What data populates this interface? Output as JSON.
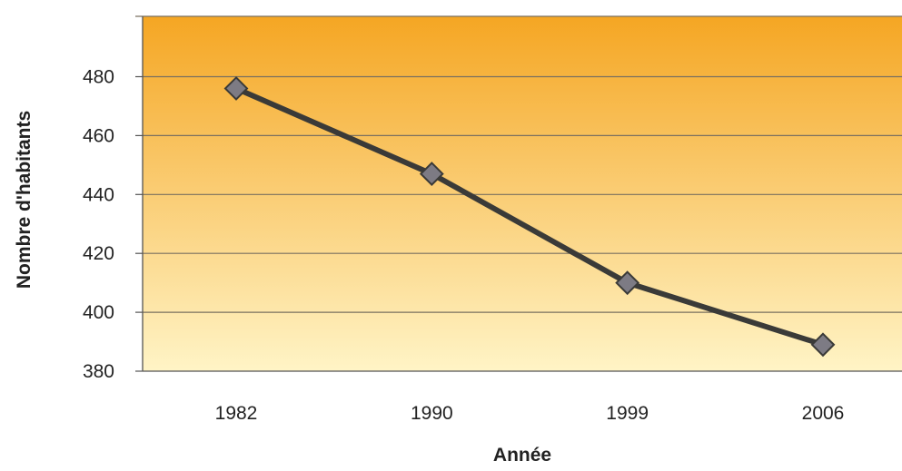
{
  "chart_data": {
    "type": "line",
    "title": "",
    "xlabel": "Année",
    "ylabel": "Nombre d'habitants",
    "categories": [
      "1982",
      "1990",
      "1999",
      "2006"
    ],
    "series": [
      {
        "values": [
          476,
          447,
          410,
          389
        ]
      }
    ],
    "ylim": [
      380,
      500
    ],
    "yticks": [
      380,
      400,
      420,
      440,
      460,
      480
    ],
    "grid": true,
    "legend": "none",
    "colors": {
      "plot_top": "#f5a623",
      "plot_bottom": "#fff4c6",
      "line": "#3a3a38",
      "marker": "#7d7b84",
      "marker_stroke": "#3a3a38",
      "grid": "#7a7060",
      "axis": "#555555"
    }
  }
}
